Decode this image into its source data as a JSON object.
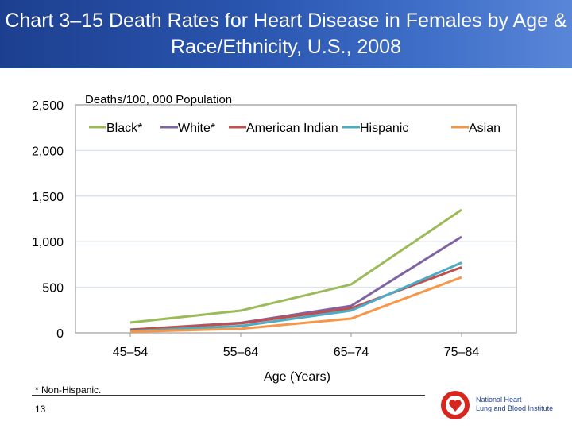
{
  "header": {
    "title": "Chart 3–15 Death Rates for Heart Disease in Females by Age & Race/Ethnicity, U.S., 2008"
  },
  "chart_data": {
    "type": "line",
    "title": "",
    "ylabel": "Deaths/100, 000 Population",
    "xlabel": "Age (Years)",
    "categories": [
      "45–54",
      "55–64",
      "65–74",
      "75–84"
    ],
    "ylim": [
      0,
      2500
    ],
    "yticks": [
      0,
      500,
      1000,
      1500,
      2000,
      2500
    ],
    "ytick_labels": [
      "0",
      "500",
      "1,000",
      "1,500",
      "2,000",
      "2,500"
    ],
    "grid": true,
    "legend": "top",
    "series": [
      {
        "name": "Black*",
        "color": "#9bbb59",
        "values": [
          113,
          244,
          531,
          1350
        ]
      },
      {
        "name": "White*",
        "color": "#8064a2",
        "values": [
          35,
          110,
          296,
          1054
        ]
      },
      {
        "name": "American Indian",
        "color": "#c0504d",
        "values": [
          35,
          105,
          270,
          720
        ]
      },
      {
        "name": "Hispanic",
        "color": "#4bacc6",
        "values": [
          20,
          75,
          245,
          770
        ]
      },
      {
        "name": "Asian",
        "color": "#f79646",
        "values": [
          12,
          45,
          157,
          610
        ]
      }
    ]
  },
  "footer": {
    "note": "* Non-Hispanic.",
    "page": "13",
    "logo_line1": "National Heart",
    "logo_line2": "Lung and Blood Institute"
  }
}
